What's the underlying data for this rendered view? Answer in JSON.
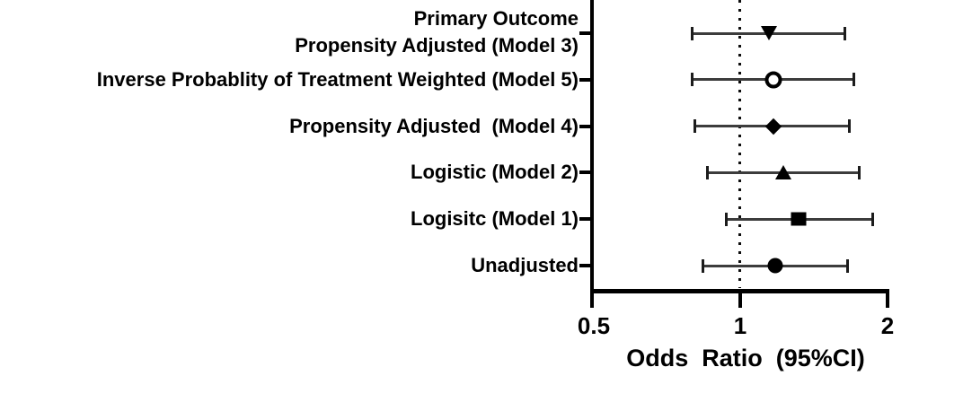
{
  "figure": {
    "background_color": "#ffffff",
    "ink_color": "#000000",
    "ci_line_color": "#3c3c3c"
  },
  "chart_data": {
    "type": "scatter",
    "subtype": "forest-plot",
    "title": "Primary Outcome",
    "xlabel": "Odds  Ratio  (95%CI)",
    "x_scale": "log2",
    "xlim": [
      0.5,
      2
    ],
    "x_ticks": [
      0.5,
      1,
      2
    ],
    "x_tick_labels": [
      "0.5",
      "1",
      "2"
    ],
    "reference_line_x": 1,
    "reference_line_style": "dotted",
    "grid": "off",
    "legend": "none",
    "rows": [
      {
        "label": "Propensity Adjusted (Model 3)",
        "marker": "triangle-down",
        "or": 1.15,
        "ci_low": 0.8,
        "ci_high": 1.64
      },
      {
        "label": "Inverse Probablity of Treatment Weighted (Model 5)",
        "marker": "circle-open",
        "or": 1.17,
        "ci_low": 0.8,
        "ci_high": 1.71
      },
      {
        "label": "Propensity Adjusted  (Model 4)",
        "marker": "diamond-filled",
        "or": 1.17,
        "ci_low": 0.81,
        "ci_high": 1.68
      },
      {
        "label": "Logistic (Model 2)",
        "marker": "triangle-up",
        "or": 1.23,
        "ci_low": 0.86,
        "ci_high": 1.76
      },
      {
        "label": "Logisitc (Model 1)",
        "marker": "square-filled",
        "or": 1.32,
        "ci_low": 0.94,
        "ci_high": 1.87
      },
      {
        "label": "Unadjusted",
        "marker": "circle-filled",
        "or": 1.18,
        "ci_low": 0.84,
        "ci_high": 1.66
      }
    ]
  }
}
